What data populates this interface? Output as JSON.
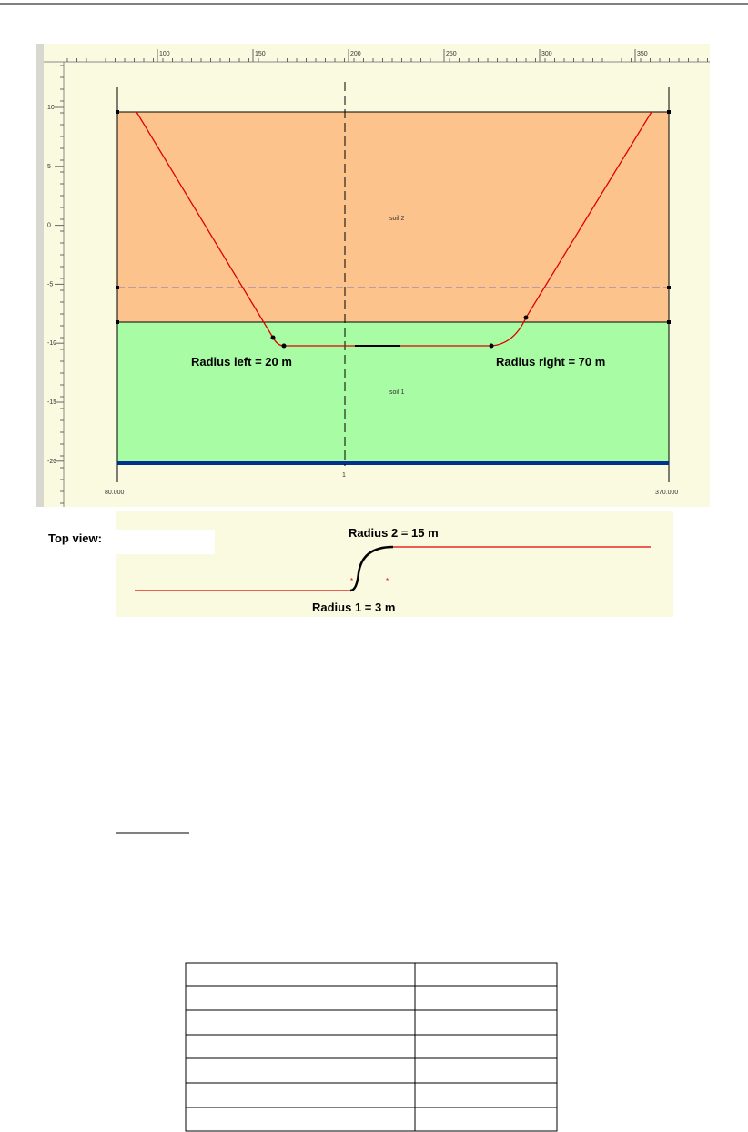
{
  "figure": {
    "top_ruler_labels": [
      "100",
      "150",
      "200",
      "250",
      "300",
      "350"
    ],
    "left_ruler_labels": [
      "10",
      "5",
      "0",
      "-5",
      "-10",
      "-15",
      "-20"
    ],
    "layer_upper": "soil 2",
    "layer_lower": "soil 1",
    "radius_left": "Radius left = 20 m",
    "radius_right": "Radius right = 70 m",
    "x_start": "80.000",
    "x_end": "370.000",
    "axis_marker": "1"
  },
  "top_view": {
    "label": "Top view:",
    "radius_2": "Radius 2 = 15 m",
    "radius_1": "Radius 1 = 3 m"
  }
}
